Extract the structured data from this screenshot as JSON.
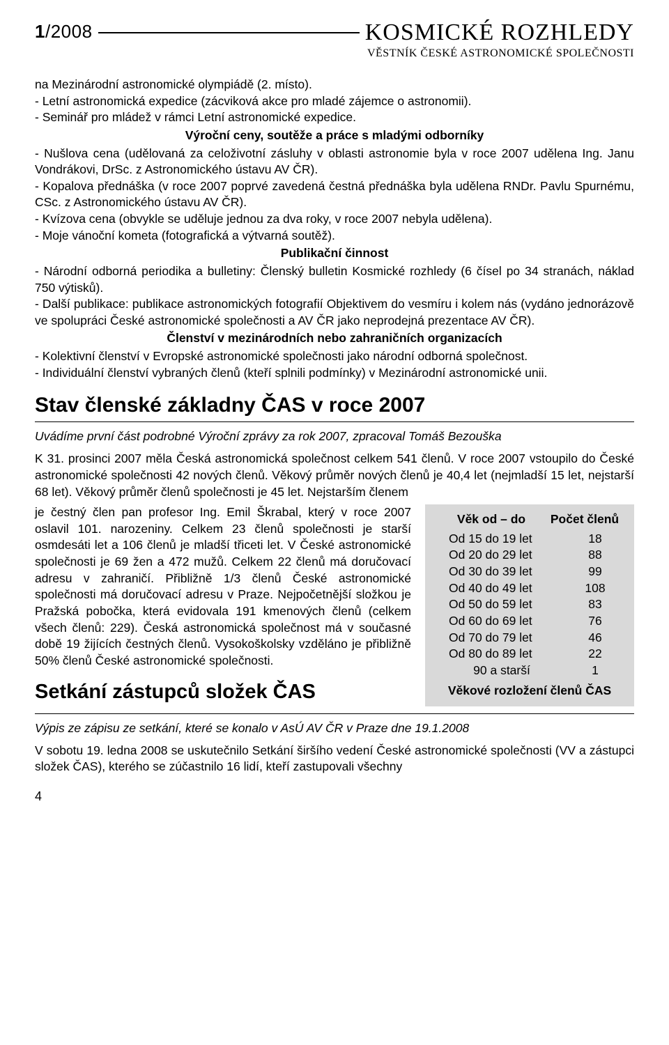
{
  "header": {
    "issue_bold": "1",
    "issue_rest": "/2008",
    "masthead": "KOSMICKÉ ROZHLEDY",
    "subtitle": "VĚSTNÍK ČESKÉ ASTRONOMICKÉ SPOLEČNOSTI"
  },
  "intro_para": "na Mezinárodní astronomické olympiádě (2. místo).\n- Letní astronomická expedice (zácviková akce pro mladé zájemce o astronomii).\n- Seminář pro mládež v rámci Letní astronomické expedice.",
  "sec1_heading": "Výroční ceny, soutěže a práce s mladými odborníky",
  "sec1_body": "- Nušlova cena (udělovaná za celoživotní zásluhy v oblasti astronomie byla v roce 2007 udělena Ing. Janu Vondrákovi, DrSc. z Astronomického ústavu AV ČR).\n- Kopalova přednáška (v roce 2007 poprvé zavedená čestná přednáška byla udělena RNDr. Pavlu Spurnému, CSc. z Astronomického ústavu AV ČR).\n- Kvízova cena (obvykle se uděluje jednou za dva roky, v roce 2007 nebyla udělena).\n- Moje vánoční kometa (fotografická a výtvarná soutěž).",
  "sec2_heading": "Publikační činnost",
  "sec2_body": "- Národní odborná periodika a bulletiny: Členský bulletin Kosmické rozhledy (6 čísel po 34 stranách, náklad 750 výtisků).\n- Další publikace: publikace astronomických fotografií Objektivem do vesmíru i kolem nás (vydáno jednorázově ve spolupráci České astronomické společnosti a AV ČR jako neprodejná prezentace AV ČR).",
  "sec3_heading": "Členství v mezinárodních nebo zahraničních organizacích",
  "sec3_body": "- Kolektivní členství v Evropské astronomické společnosti jako národní odborná společnost.\n- Individuální členství vybraných členů (kteří splnili podmínky) v Mezinárodní astronomické unii.",
  "article1": {
    "title": "Stav členské základny ČAS v roce 2007",
    "intro": "Uvádíme první část podrobné Výroční zprávy za rok 2007, zpracoval Tomáš Bezouška",
    "para_top": "K 31. prosinci 2007 měla Česká astronomická společnost celkem 541 členů. V roce 2007 vstoupilo do České astronomické společnosti 42 nových členů. Věkový průměr nových členů je 40,4 let (nejmladší 15 let, nejstarší 68 let). Věkový průměr členů společnosti je 45 let. Nejstarším členem",
    "para_left": "je čestný člen pan profesor Ing. Emil Škrabal, který v roce 2007 oslavil 101. narozeniny. Celkem 23 členů společnosti je starší osmdesáti let a 106 členů je mladší třiceti let. V České astronomické společnosti je 69 žen a 472 mužů. Celkem 22 členů má doručovací adresu v zahraničí. Přibližně 1/3 členů České astronomické společnosti má doručovací adresu v Praze. Nejpočetnější složkou je Pražská pobočka, která evidovala 191 kmenových členů (celkem všech členů: 229). Česká astronomická společnost má v současné době 19 žijících čestných členů. Vysokoškolsky vzděláno je přibližně 50% členů České astronomické společnosti."
  },
  "table": {
    "col1_header": "Věk od – do",
    "col2_header": "Počet členů",
    "rows": [
      {
        "range": "Od 15 do 19 let",
        "count": "18"
      },
      {
        "range": "Od 20 do 29 let",
        "count": "88"
      },
      {
        "range": "Od 30 do 39 let",
        "count": "99"
      },
      {
        "range": "Od 40 do 49 let",
        "count": "108"
      },
      {
        "range": "Od 50 do 59 let",
        "count": "83"
      },
      {
        "range": "Od 60 do 69 let",
        "count": "76"
      },
      {
        "range": "Od 70 do 79 let",
        "count": "46"
      },
      {
        "range": "Od 80 do 89 let",
        "count": "22"
      },
      {
        "range": "90 a starší",
        "count": "1"
      }
    ],
    "footer": "Věkové rozložení členů ČAS"
  },
  "article2": {
    "title": "Setkání zástupců složek ČAS",
    "intro": "Výpis ze zápisu ze setkání, které se konalo v AsÚ AV ČR v Praze dne 19.1.2008",
    "body": "V sobotu 19. ledna 2008 se uskutečnilo Setkání širšího vedení České astronomické společnosti (VV a zástupci složek ČAS), kterého se zúčastnilo 16 lidí, kteří zastupovali všechny"
  },
  "page_number": "4"
}
